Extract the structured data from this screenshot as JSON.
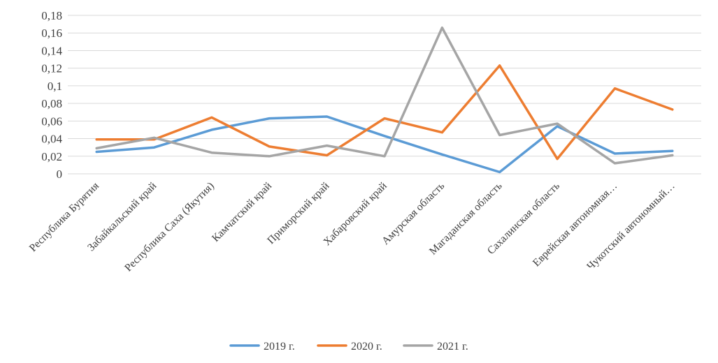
{
  "chart_data": {
    "type": "line",
    "title": "",
    "xlabel": "",
    "ylabel": "",
    "ylim": [
      0,
      0.18
    ],
    "y_ticks": [
      "0",
      "0,02",
      "0,04",
      "0,06",
      "0,08",
      "0,1",
      "0,12",
      "0,14",
      "0,16",
      "0,18"
    ],
    "y_tick_values": [
      0,
      0.02,
      0.04,
      0.06,
      0.08,
      0.1,
      0.12,
      0.14,
      0.16,
      0.18
    ],
    "grid": true,
    "legend_position": "bottom",
    "categories": [
      "Республика Бурятия",
      "Забайкальский край",
      "Республика Саха (Якутия)",
      "Камчатский край",
      "Приморский край",
      "Хабаровский край",
      "Амурская область",
      "Магаданская область",
      "Сахалинская область",
      "Еврейская автономная…",
      "Чукотский автономный…"
    ],
    "series": [
      {
        "name": "2019 г.",
        "color": "#5b9bd5",
        "values": [
          0.025,
          0.03,
          0.05,
          0.063,
          0.065,
          0.043,
          0.022,
          0.002,
          0.054,
          0.023,
          0.026
        ]
      },
      {
        "name": "2020 г.",
        "color": "#ed7d31",
        "values": [
          0.039,
          0.039,
          0.064,
          0.031,
          0.021,
          0.063,
          0.047,
          0.123,
          0.017,
          0.097,
          0.073
        ]
      },
      {
        "name": "2021 г.",
        "color": "#a5a5a5",
        "values": [
          0.029,
          0.041,
          0.024,
          0.02,
          0.032,
          0.02,
          0.166,
          0.044,
          0.057,
          0.012,
          0.021
        ]
      }
    ]
  }
}
